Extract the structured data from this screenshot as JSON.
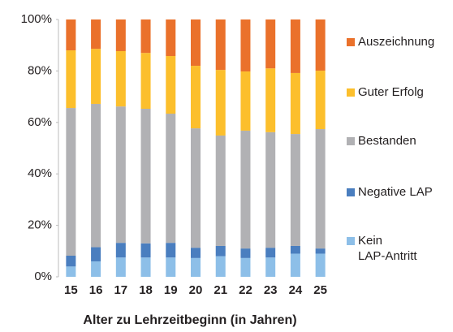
{
  "chart_data": {
    "type": "stacked_bar",
    "x_label": "Alter zu Lehrzeitbeginn (in Jahren)",
    "categories": [
      "15",
      "16",
      "17",
      "18",
      "19",
      "20",
      "21",
      "22",
      "23",
      "24",
      "25"
    ],
    "series": [
      {
        "name": "Kein LAP-Antritt",
        "color": "#8dbfe8",
        "values": [
          4,
          6,
          7.5,
          7.5,
          7.5,
          7.3,
          8,
          7.3,
          7.5,
          9,
          9
        ]
      },
      {
        "name": "Negative LAP",
        "color": "#4a7ebf",
        "values": [
          4.2,
          5.5,
          5.7,
          5.5,
          5.7,
          4,
          4,
          3.7,
          3.8,
          3,
          2
        ]
      },
      {
        "name": "Bestanden",
        "color": "#b1b1b4",
        "values": [
          57.4,
          55.7,
          53,
          52.3,
          50.2,
          46.4,
          42.9,
          45.8,
          44.9,
          43.5,
          46.4
        ]
      },
      {
        "name": "Guter Erfolg",
        "color": "#fcbf2c",
        "values": [
          22.4,
          21.4,
          21.5,
          21.7,
          22.4,
          24.3,
          25.5,
          23,
          24.8,
          23.7,
          22.7
        ]
      },
      {
        "name": "Auszeichnung",
        "color": "#ea712b",
        "values": [
          12,
          11.4,
          12.3,
          13,
          14.2,
          18,
          19.6,
          20.2,
          19,
          20.8,
          19.9
        ]
      }
    ],
    "ylim": [
      0,
      100
    ],
    "yticks": [
      {
        "value": 0,
        "label": "0%"
      },
      {
        "value": 20,
        "label": "20%"
      },
      {
        "value": 40,
        "label": "40%"
      },
      {
        "value": 60,
        "label": "60%"
      },
      {
        "value": 80,
        "label": "80%"
      },
      {
        "value": 100,
        "label": "100%"
      }
    ],
    "legend": "right"
  }
}
